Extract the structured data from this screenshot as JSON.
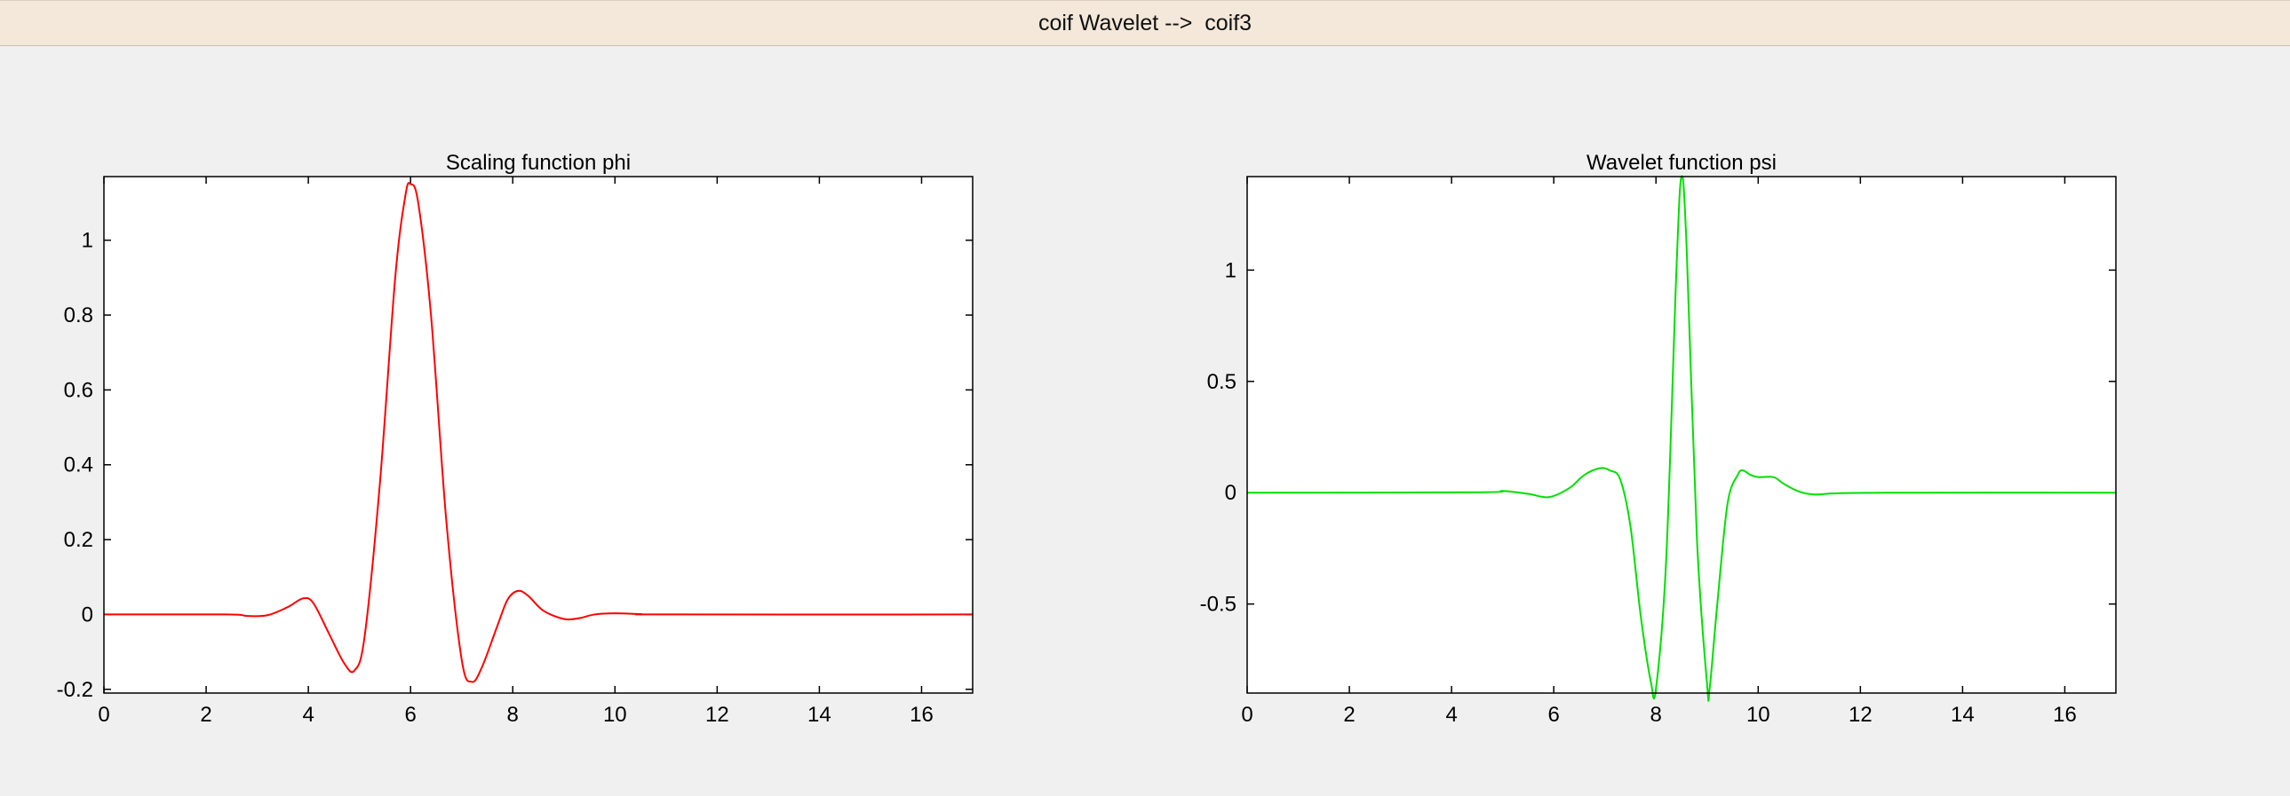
{
  "window": {
    "title": "coif Wavelet -->  coif3"
  },
  "colors": {
    "phi_line": "#ff0000",
    "psi_line": "#00e000",
    "axes": "#000000",
    "plot_bg": "#ffffff"
  },
  "chart_data": [
    {
      "type": "line",
      "title": "Scaling function phi",
      "xlabel": "",
      "ylabel": "",
      "xlim": [
        0,
        17
      ],
      "ylim": [
        -0.21,
        1.17
      ],
      "xticks": [
        0,
        2,
        4,
        6,
        8,
        10,
        12,
        14,
        16
      ],
      "yticks": [
        -0.2,
        0,
        0.2,
        0.4,
        0.6,
        0.8,
        1
      ],
      "ytick_labels": [
        "-0.2",
        "0",
        "0.2",
        "0.4",
        "0.6",
        "0.8",
        "1"
      ],
      "grid": false,
      "series": [
        {
          "color": "#ff0000",
          "x": [
            0,
            2.4,
            2.8,
            3.2,
            3.6,
            3.9,
            4.1,
            4.4,
            4.7,
            4.9,
            5.1,
            5.4,
            5.7,
            5.9,
            6.0,
            6.15,
            6.4,
            6.7,
            7.0,
            7.2,
            7.4,
            7.7,
            7.9,
            8.1,
            8.3,
            8.6,
            9.0,
            9.3,
            9.6,
            10.0,
            10.5,
            11,
            17
          ],
          "y": [
            0,
            0,
            -0.004,
            -0.002,
            0.02,
            0.043,
            0.03,
            -0.05,
            -0.13,
            -0.15,
            -0.06,
            0.35,
            0.9,
            1.12,
            1.15,
            1.1,
            0.8,
            0.25,
            -0.12,
            -0.18,
            -0.14,
            -0.03,
            0.04,
            0.063,
            0.05,
            0.01,
            -0.012,
            -0.01,
            0.0,
            0.003,
            0.001,
            0,
            0
          ]
        }
      ]
    },
    {
      "type": "line",
      "title": "Wavelet function psi",
      "xlabel": "",
      "ylabel": "",
      "xlim": [
        0,
        17
      ],
      "ylim": [
        -0.9,
        1.42
      ],
      "xticks": [
        0,
        2,
        4,
        6,
        8,
        10,
        12,
        14,
        16
      ],
      "yticks": [
        -0.5,
        0,
        0.5,
        1
      ],
      "ytick_labels": [
        "-0.5",
        "0",
        "0.5",
        "1"
      ],
      "grid": false,
      "series": [
        {
          "color": "#00e000",
          "x": [
            0,
            4.5,
            5.0,
            5.5,
            5.9,
            6.3,
            6.6,
            6.9,
            7.1,
            7.3,
            7.5,
            7.7,
            7.9,
            8.0,
            8.2,
            8.4,
            8.5,
            8.6,
            8.8,
            9.0,
            9.05,
            9.2,
            9.4,
            9.6,
            9.7,
            9.85,
            10.0,
            10.3,
            10.5,
            10.8,
            11.1,
            11.5,
            12.5,
            17
          ],
          "y": [
            0,
            0.002,
            0.008,
            -0.005,
            -0.02,
            0.02,
            0.08,
            0.11,
            0.1,
            0.06,
            -0.15,
            -0.55,
            -0.85,
            -0.88,
            -0.3,
            1.0,
            1.42,
            1.1,
            -0.2,
            -0.86,
            -0.88,
            -0.5,
            -0.05,
            0.08,
            0.1,
            0.08,
            0.07,
            0.07,
            0.04,
            0.005,
            -0.008,
            -0.003,
            0,
            0
          ]
        }
      ]
    }
  ]
}
